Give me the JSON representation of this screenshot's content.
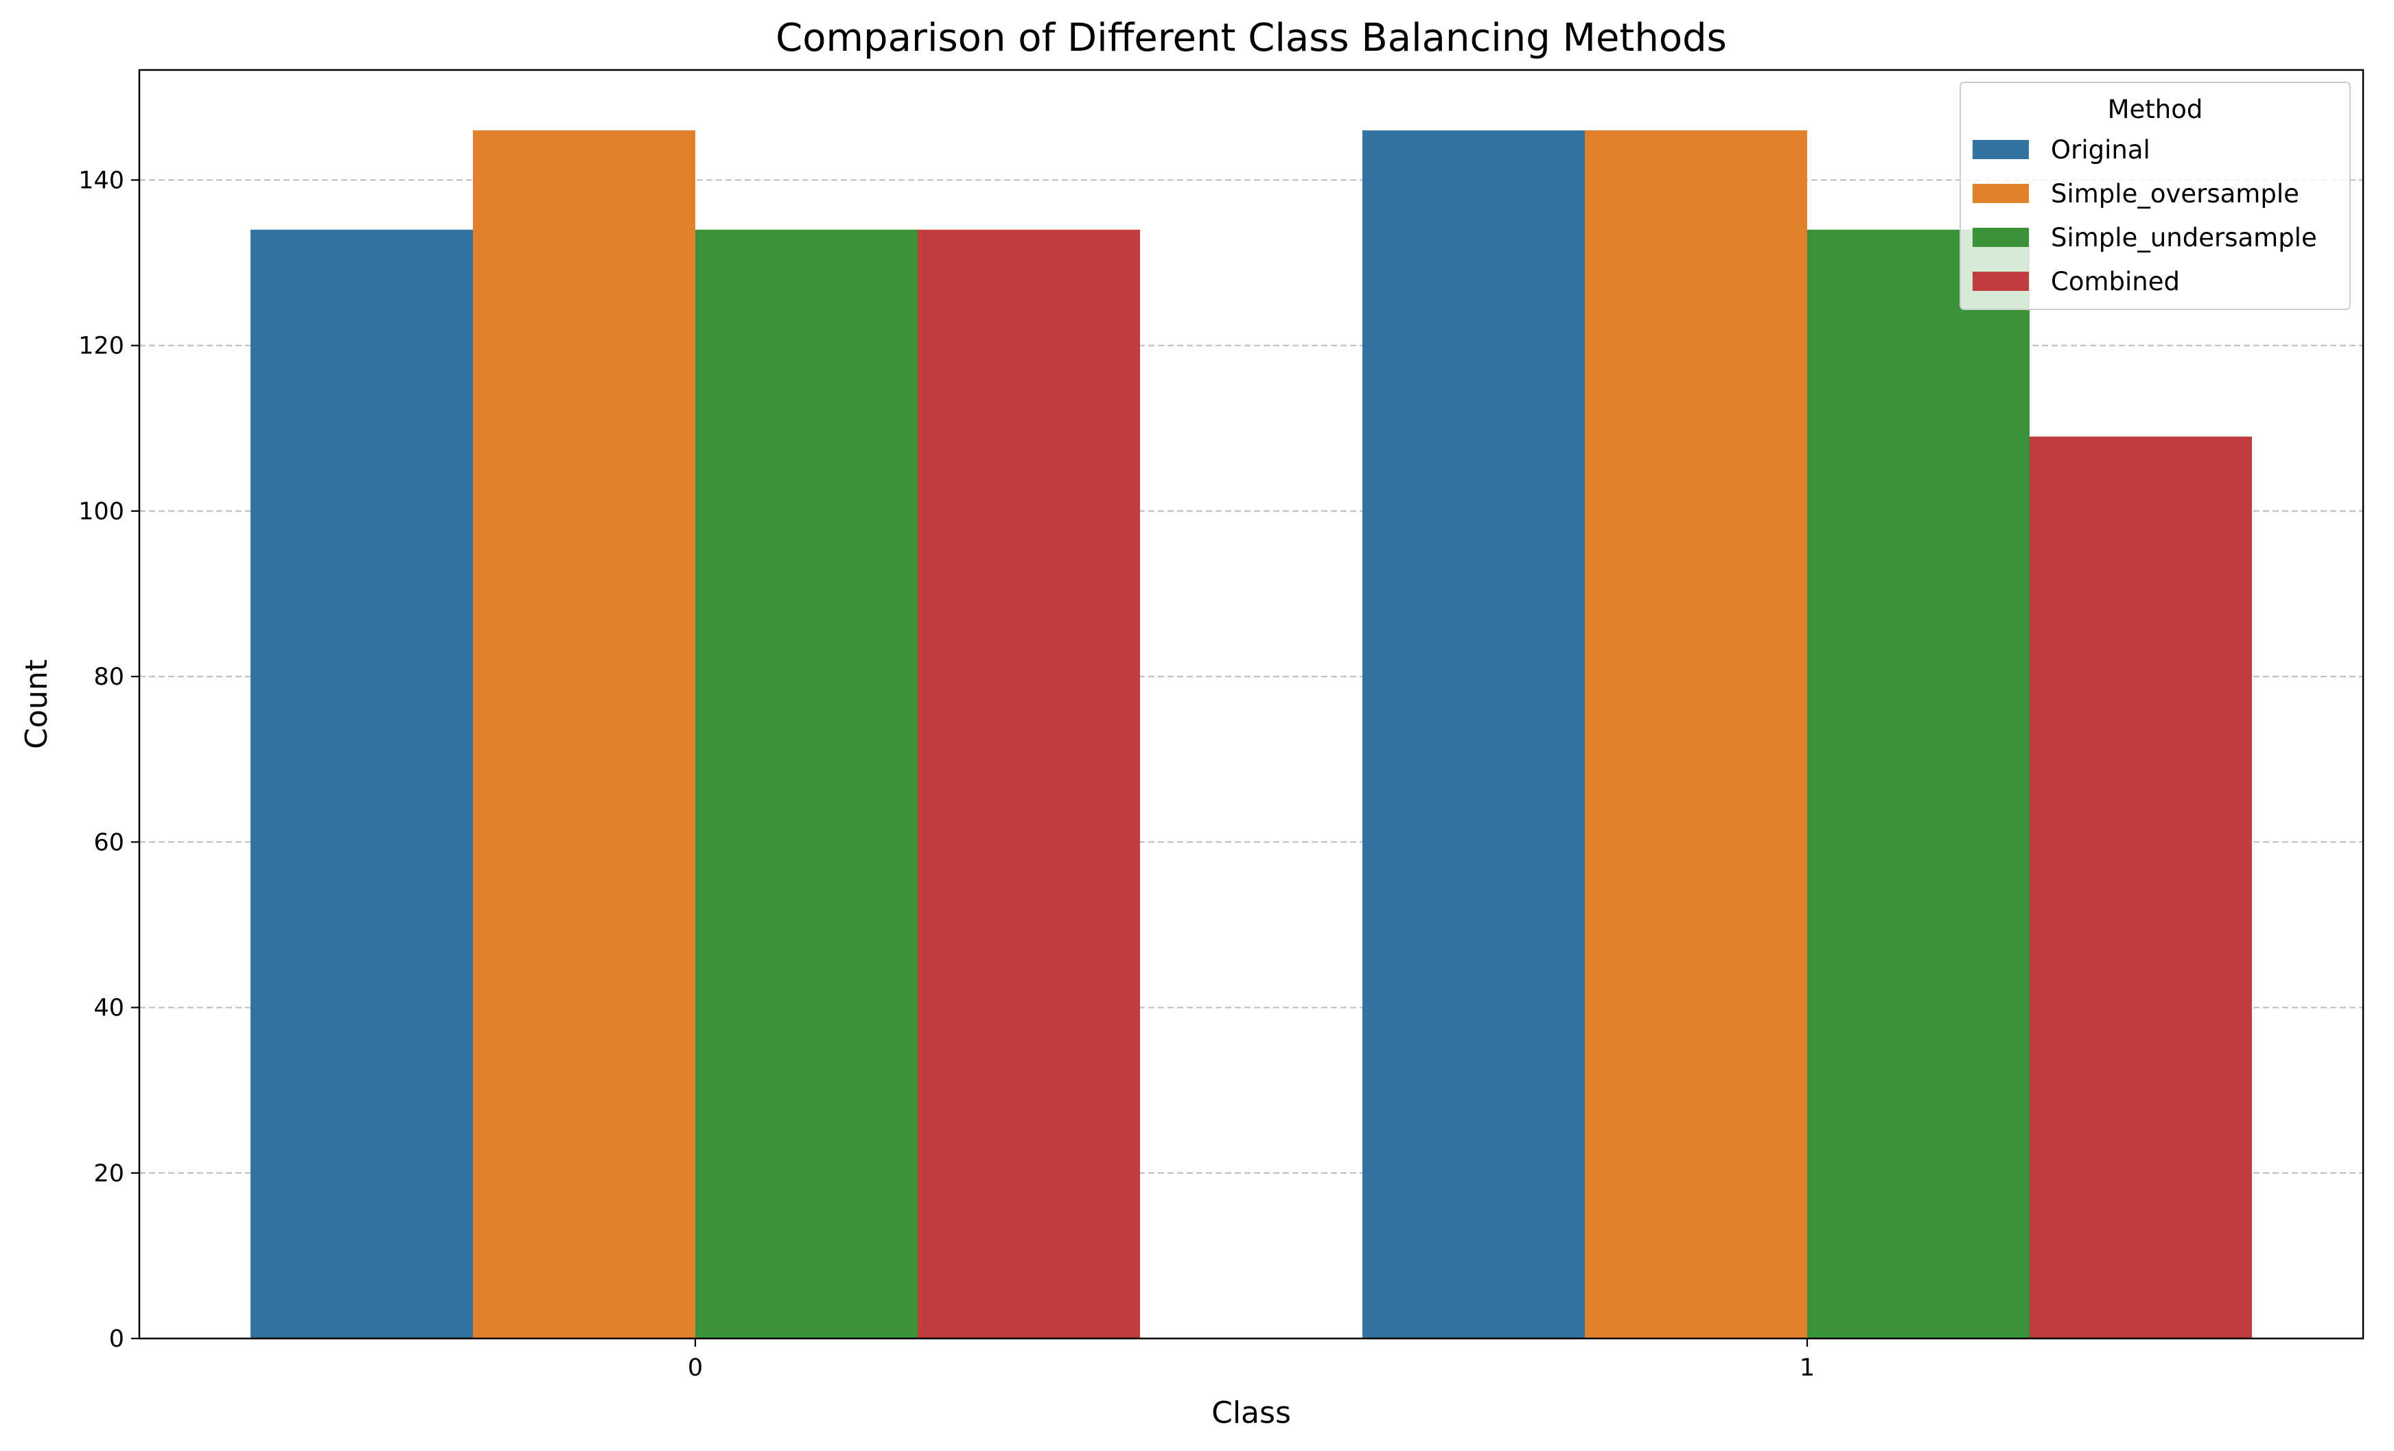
{
  "chart_data": {
    "type": "bar",
    "title": "Comparison of Different Class Balancing Methods",
    "xlabel": "Class",
    "ylabel": "Count",
    "categories": [
      "0",
      "1"
    ],
    "series": [
      {
        "name": "Original",
        "values": [
          134,
          146
        ],
        "color": "#3274a1"
      },
      {
        "name": "Simple_oversample",
        "values": [
          146,
          146
        ],
        "color": "#e1812c"
      },
      {
        "name": "Simple_undersample",
        "values": [
          134,
          134
        ],
        "color": "#3a923a"
      },
      {
        "name": "Combined",
        "values": [
          134,
          109
        ],
        "color": "#c03d3e"
      }
    ],
    "ylim": [
      0,
      153.3
    ],
    "yticks": [
      0,
      20,
      40,
      60,
      80,
      100,
      120,
      140
    ],
    "grid": {
      "axis": "y",
      "style": "dashed",
      "on": true
    },
    "legend": {
      "title": "Method",
      "placement": "top-right"
    }
  }
}
